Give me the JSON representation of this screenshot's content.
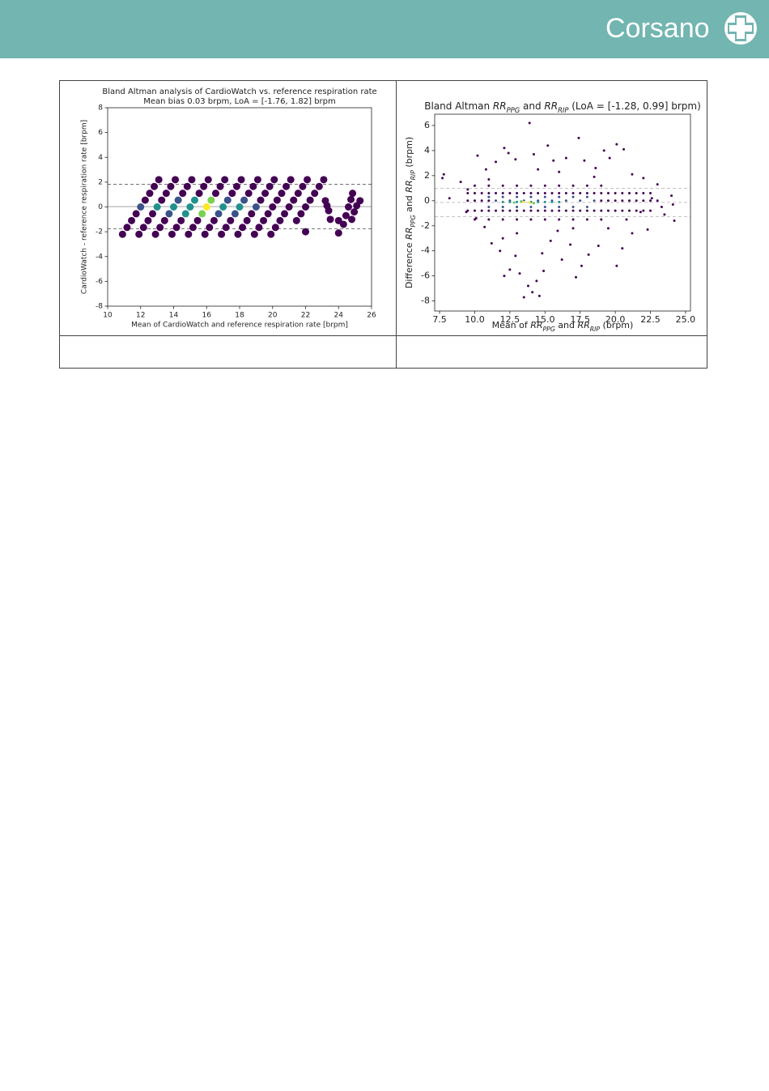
{
  "header": {
    "logo": "Corsano"
  },
  "chart_data": [
    {
      "type": "scatter",
      "title": "Bland Altman analysis of CardioWatch vs. reference respiration rate",
      "subtitle": "Mean bias 0.03 brpm, LoA = [-1.76, 1.82] brpm",
      "xlabel": "Mean of CardioWatch and reference respiration rate [brpm]",
      "ylabel": "CardioWatch - reference respiration rate [brpm]",
      "xlim": [
        10,
        26
      ],
      "ylim": [
        -8,
        8
      ],
      "xticks": [
        10,
        12,
        14,
        16,
        18,
        20,
        22,
        24,
        26
      ],
      "yticks": [
        -8,
        -6,
        -4,
        -2,
        0,
        2,
        4,
        6,
        8
      ],
      "hlines": [
        {
          "value": 0.03,
          "style": "solid",
          "color": "#999999"
        },
        {
          "value": 1.82,
          "style": "dashed",
          "color": "#666666"
        },
        {
          "value": -1.76,
          "style": "dashed",
          "color": "#666666"
        }
      ],
      "series": [
        {
          "color": "#440154",
          "x": [
            10.9,
            11.175,
            11.45,
            11.725,
            12.275,
            12.55,
            12.825,
            13.1,
            11.9,
            12.175,
            12.45,
            12.725,
            13.275,
            13.55,
            13.825,
            14.1,
            12.9,
            13.175,
            13.45,
            14.55,
            14.825,
            15.1,
            13.9,
            14.175,
            14.45,
            15.55,
            15.825,
            16.1,
            14.9,
            15.175,
            15.45,
            16.55,
            16.825,
            17.1,
            15.9,
            16.175,
            16.45,
            17.55,
            17.825,
            18.1,
            16.9,
            17.175,
            17.45,
            18.55,
            18.825,
            19.1,
            17.9,
            18.175,
            18.45,
            18.725,
            19.275,
            19.55,
            19.825,
            20.1,
            18.9,
            19.175,
            19.45,
            19.725,
            20,
            20.275,
            20.55,
            20.825,
            21.1,
            19.9,
            20.175,
            20.45,
            20.725,
            21,
            21.275,
            21.55,
            21.825,
            22.1,
            21.45,
            21.725,
            22,
            22.275,
            22.55,
            22.825,
            23.1,
            22,
            23.2,
            23.3,
            23.4,
            23.5,
            24,
            24,
            24.3,
            24.45,
            24.6,
            24.75,
            24.85,
            24.8,
            24.95,
            25.1,
            25.3
          ],
          "values": [
            -2.2,
            -1.65,
            -1.1,
            -0.55,
            0.55,
            1.1,
            1.65,
            2.2,
            -2.2,
            -1.65,
            -1.1,
            -0.55,
            0.55,
            1.1,
            1.65,
            2.2,
            -2.2,
            -1.65,
            -1.1,
            1.1,
            1.65,
            2.2,
            -2.2,
            -1.65,
            -1.1,
            1.1,
            1.65,
            2.2,
            -2.2,
            -1.65,
            -1.1,
            1.1,
            1.65,
            2.2,
            -2.2,
            -1.65,
            -1.1,
            1.1,
            1.65,
            2.2,
            -2.2,
            -1.65,
            -1.1,
            1.1,
            1.65,
            2.2,
            -2.2,
            -1.65,
            -1.1,
            -0.55,
            0.55,
            1.1,
            1.65,
            2.2,
            -2.2,
            -1.65,
            -1.1,
            -0.55,
            0,
            0.55,
            1.1,
            1.65,
            2.2,
            -2.2,
            -1.65,
            -1.1,
            -0.55,
            0,
            0.55,
            1.1,
            1.65,
            2.2,
            -1.1,
            -0.55,
            0,
            0.55,
            1.1,
            1.65,
            2.2,
            -2,
            0.5,
            0.1,
            -0.3,
            -1,
            -1.1,
            -2.1,
            -1.4,
            -0.7,
            0,
            0.6,
            1.1,
            -1,
            -0.4,
            0.1,
            0.5
          ]
        },
        {
          "color": "#3b528b",
          "x": [
            12,
            13.725,
            14.275,
            16.725,
            17.275,
            17.725,
            18.275,
            19
          ],
          "values": [
            0,
            -0.55,
            0.55,
            -0.55,
            0.55,
            -0.55,
            0.55,
            0
          ]
        },
        {
          "color": "#21918c",
          "x": [
            13,
            14,
            14.725,
            15.275,
            15,
            17,
            18
          ],
          "values": [
            0,
            0,
            -0.55,
            0.55,
            0,
            0,
            0
          ]
        },
        {
          "color": "#7ad151",
          "x": [
            15.725,
            16.275
          ],
          "values": [
            -0.55,
            0.55
          ]
        },
        {
          "color": "#fde725",
          "x": [
            16
          ],
          "values": [
            0
          ]
        }
      ]
    },
    {
      "type": "scatter",
      "title": [
        {
          "text": "Bland Altman ",
          "style": "normal"
        },
        {
          "text": "RR",
          "style": "math"
        },
        {
          "text": "PPG",
          "style": "sub"
        },
        {
          "text": " and ",
          "style": "normal"
        },
        {
          "text": "RR",
          "style": "math"
        },
        {
          "text": "RIP",
          "style": "sub"
        },
        {
          "text": " (LoA = [-1.28, 0.99] brpm)",
          "style": "normal"
        }
      ],
      "xlabel": [
        {
          "text": "Mean of ",
          "style": "normal"
        },
        {
          "text": "RR",
          "style": "math"
        },
        {
          "text": "PPG",
          "style": "sub"
        },
        {
          "text": " and ",
          "style": "normal"
        },
        {
          "text": "RR",
          "style": "math"
        },
        {
          "text": "RIP",
          "style": "sub"
        },
        {
          "text": " (brpm)",
          "style": "normal"
        }
      ],
      "ylabel": [
        {
          "text": "Difference ",
          "style": "normal"
        },
        {
          "text": "RR",
          "style": "math"
        },
        {
          "text": "PPG",
          "style": "sub"
        },
        {
          "text": " and ",
          "style": "normal"
        },
        {
          "text": "RR",
          "style": "math"
        },
        {
          "text": "RIP",
          "style": "sub"
        },
        {
          "text": " (brpm)",
          "style": "normal"
        }
      ],
      "xlim": [
        7.15,
        25.35
      ],
      "ylim": [
        -8.8,
        6.9
      ],
      "xticks": [
        7.5,
        {
          "value": 10,
          "label": "10.0"
        },
        12.5,
        {
          "value": 15,
          "label": "15.0"
        },
        17.5,
        {
          "value": 20,
          "label": "20.0"
        },
        22.5,
        {
          "value": 25,
          "label": "25.0"
        }
      ],
      "yticks": [
        -8,
        -6,
        -4,
        -2,
        0,
        2,
        4,
        6
      ],
      "hlines": [
        {
          "value": 0.99,
          "style": "dashed",
          "color": "#bbbbbb"
        },
        {
          "value": -0.14,
          "style": "dashed",
          "color": "#bbbbbb"
        },
        {
          "value": -1.28,
          "style": "dashed",
          "color": "#bbbbbb"
        }
      ],
      "series": [
        {
          "color": "#440154",
          "x": [
            7.8,
            7.7,
            9,
            9.5,
            10.2,
            10.8,
            11.5,
            12.1,
            12.4,
            12.9,
            13.9,
            14.2,
            15.2,
            15.6,
            16.5,
            17.4,
            17.8,
            18.6,
            19.2,
            19.6,
            20.1,
            20.6,
            21.2,
            22,
            23,
            24,
            24.2,
            23.5,
            22.3,
            21.2,
            20.5,
            20.1,
            18.8,
            18.1,
            17.6,
            17.2,
            16.8,
            16.2,
            15.4,
            14.9,
            14.8,
            14.4,
            14.1,
            13.8,
            13.5,
            13.2,
            12.9,
            12.5,
            12.1,
            11.8,
            11.2,
            10.7,
            10.1,
            9.4,
            8.2,
            14.6,
            15.9,
            17,
            13,
            19.5,
            12,
            16,
            14.5,
            18.5,
            11,
            20.8,
            21.8,
            22.6,
            23.3,
            24.1,
            9.5,
            10,
            10.5,
            11,
            11.5,
            12,
            12.5,
            13,
            13.5,
            14,
            14.5,
            15,
            15.5,
            16,
            16.5,
            17,
            17.5,
            18,
            18.5,
            19,
            19.5,
            20,
            20.5,
            21,
            21.5,
            22,
            22.5,
            9.5,
            10,
            10.5,
            11,
            11.5,
            12,
            12.5,
            13,
            13.5,
            14,
            14.5,
            15,
            15.5,
            16,
            16.5,
            17,
            17.5,
            18,
            18.5,
            19,
            19.5,
            20,
            20.5,
            21,
            21.5,
            22,
            22.5,
            10,
            11,
            12,
            13,
            14,
            15,
            16,
            17,
            18,
            19,
            10,
            11,
            12,
            13,
            14,
            15,
            16,
            17,
            18,
            19,
            9.5,
            10,
            10.5,
            11,
            19,
            19.5,
            20,
            20.5,
            21,
            21.5,
            22,
            22.5,
            23
          ],
          "values": [
            2.1,
            1.8,
            1.5,
            0.9,
            3.6,
            2.5,
            3.1,
            4.2,
            3.8,
            3.3,
            6.2,
            3.7,
            4.4,
            3.2,
            3.4,
            5,
            3.2,
            2.6,
            4,
            3.4,
            4.5,
            4.1,
            2.1,
            1.8,
            1.3,
            0.4,
            -1.6,
            -1.1,
            -2.3,
            -2.6,
            -3.8,
            -5.2,
            -3.6,
            -4.3,
            -5.2,
            -6.1,
            -3.5,
            -4.7,
            -3.2,
            -5.6,
            -4.2,
            -6.4,
            -7.3,
            -6.8,
            -7.7,
            -5.8,
            -4.4,
            -5.5,
            -6,
            -4,
            -3.4,
            -2.1,
            -1.4,
            -0.9,
            0.2,
            -7.6,
            -2.4,
            -2.2,
            -2.6,
            -2.2,
            -3,
            2.3,
            2.5,
            1.9,
            1.7,
            -1.5,
            -0.9,
            0.2,
            -0.5,
            -0.3,
            0.6,
            0.6,
            0.6,
            0.6,
            0.6,
            0.6,
            0.6,
            0.6,
            0.6,
            0.6,
            0.6,
            0.6,
            0.6,
            0.6,
            0.6,
            0.6,
            0.6,
            0.6,
            0.6,
            0.6,
            0.6,
            0.6,
            0.6,
            0.6,
            0.6,
            0.6,
            0.6,
            -0.8,
            -0.8,
            -0.8,
            -0.8,
            -0.8,
            -0.8,
            -0.8,
            -0.8,
            -0.8,
            -0.8,
            -0.8,
            -0.8,
            -0.8,
            -0.8,
            -0.8,
            -0.8,
            -0.8,
            -0.8,
            -0.8,
            -0.8,
            -0.8,
            -0.8,
            -0.8,
            -0.8,
            -0.8,
            -0.8,
            -0.8,
            1.2,
            1.2,
            1.2,
            1.2,
            1.2,
            1.2,
            1.2,
            1.2,
            1.2,
            1.2,
            -1.5,
            -1.5,
            -1.5,
            -1.5,
            -1.5,
            -1.5,
            -1.5,
            -1.5,
            -1.5,
            -1.5,
            0,
            0,
            0,
            0,
            0,
            0,
            0,
            0,
            0,
            0,
            0,
            0,
            0
          ]
        },
        {
          "color": "#3b528b",
          "x": [
            11,
            12,
            13,
            14,
            15,
            16,
            17,
            18,
            11,
            12,
            13,
            14,
            15,
            16,
            17,
            18,
            11.5,
            12.5,
            13.5,
            14.5,
            15.5,
            16.5,
            17.5,
            18.5
          ],
          "values": [
            0.3,
            0.3,
            0.3,
            0.3,
            0.3,
            0.3,
            0.3,
            0.3,
            -0.5,
            -0.5,
            -0.5,
            -0.5,
            -0.5,
            -0.5,
            -0.5,
            -0.5,
            0,
            0,
            0,
            0,
            0,
            0,
            0,
            0
          ]
        },
        {
          "color": "#21918c",
          "x": [
            12,
            12.5,
            13,
            14,
            14.5,
            15,
            15.5,
            16
          ],
          "values": [
            -0.1,
            -0.1,
            -0.1,
            -0.1,
            -0.1,
            -0.1,
            -0.1,
            -0.1
          ]
        },
        {
          "color": "#5ec962",
          "x": [
            12.8,
            13.3,
            14.2
          ],
          "values": [
            -0.15,
            -0.05,
            -0.2
          ]
        },
        {
          "color": "#fde725",
          "x": [
            13.5,
            13.9
          ],
          "values": [
            -0.1,
            -0.15
          ]
        }
      ]
    }
  ]
}
